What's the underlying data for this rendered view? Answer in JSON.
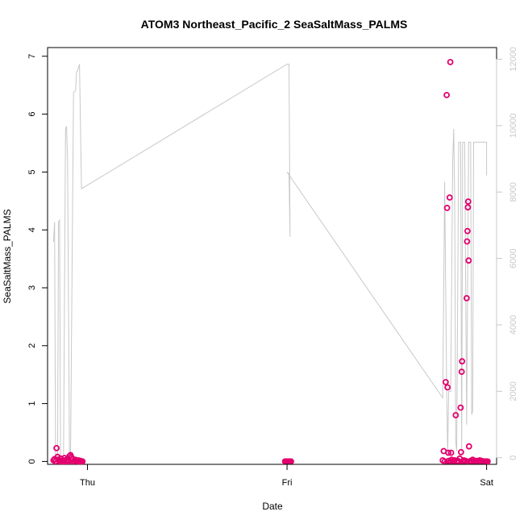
{
  "chart_data": {
    "type": "scatter",
    "title": "ATOM3 Northeast_Pacific_2 SeaSaltMass_PALMS",
    "xlabel": "Date",
    "ylabel": "SeaSaltMass_PALMS",
    "xlim": [
      -0.2,
      2.05
    ],
    "ylim": [
      -0.05,
      7.15
    ],
    "y2lim": [
      -200,
      12350
    ],
    "x_ticks": [
      {
        "value": 0,
        "label": "Thu"
      },
      {
        "value": 1,
        "label": "Fri"
      },
      {
        "value": 2,
        "label": "Sat"
      }
    ],
    "y_ticks": [
      0,
      1,
      2,
      3,
      4,
      5,
      6,
      7
    ],
    "y2_ticks": [
      0,
      2000,
      4000,
      6000,
      8000,
      10000,
      12000
    ],
    "grid": false,
    "colors": {
      "points": "#e3006e",
      "secondary_line": "#c8c8c8",
      "axes": "#000000",
      "right_axis": "#c8c8c8"
    },
    "series": [
      {
        "type": "scatter",
        "axis": "left",
        "values": [
          [
            -0.17,
            0.02
          ],
          [
            -0.165,
            0.04
          ],
          [
            -0.16,
            0.0
          ],
          [
            -0.155,
            0.23
          ],
          [
            -0.15,
            0.08
          ],
          [
            -0.145,
            0.03
          ],
          [
            -0.14,
            0.0
          ],
          [
            -0.135,
            0.05
          ],
          [
            -0.13,
            0.01
          ],
          [
            -0.125,
            0.0
          ],
          [
            -0.12,
            0.02
          ],
          [
            -0.115,
            0.06
          ],
          [
            -0.11,
            0.0
          ],
          [
            -0.105,
            0.03
          ],
          [
            -0.1,
            0.01
          ],
          [
            -0.095,
            0.0
          ],
          [
            -0.09,
            0.09
          ],
          [
            -0.085,
            0.11
          ],
          [
            -0.08,
            0.07
          ],
          [
            -0.075,
            0.04
          ],
          [
            -0.07,
            0.0
          ],
          [
            -0.065,
            0.02
          ],
          [
            -0.06,
            0.03
          ],
          [
            -0.055,
            0.01
          ],
          [
            -0.05,
            0.0
          ],
          [
            -0.045,
            0.02
          ],
          [
            -0.04,
            0.0
          ],
          [
            -0.035,
            0.01
          ],
          [
            -0.03,
            0.0
          ],
          [
            -0.025,
            0.0
          ],
          [
            0.99,
            0.0
          ],
          [
            0.995,
            0.0
          ],
          [
            1.0,
            0.0
          ],
          [
            1.005,
            0.0
          ],
          [
            1.01,
            0.0
          ],
          [
            1.015,
            0.0
          ],
          [
            1.02,
            0.0
          ],
          [
            1.78,
            0.02
          ],
          [
            1.785,
            0.18
          ],
          [
            1.79,
            0.0
          ],
          [
            1.795,
            1.37
          ],
          [
            1.8,
            6.33
          ],
          [
            1.802,
            4.38
          ],
          [
            1.804,
            1.28
          ],
          [
            1.806,
            0.0
          ],
          [
            1.808,
            0.15
          ],
          [
            1.81,
            0.01
          ],
          [
            1.815,
            4.56
          ],
          [
            1.818,
            6.9
          ],
          [
            1.82,
            0.0
          ],
          [
            1.822,
            0.15
          ],
          [
            1.825,
            0.03
          ],
          [
            1.83,
            0.0
          ],
          [
            1.835,
            0.01
          ],
          [
            1.84,
            0.02
          ],
          [
            1.845,
            0.8
          ],
          [
            1.85,
            0.0
          ],
          [
            1.855,
            0.01
          ],
          [
            1.86,
            0.0
          ],
          [
            1.865,
            0.05
          ],
          [
            1.87,
            0.93
          ],
          [
            1.872,
            0.16
          ],
          [
            1.875,
            1.55
          ],
          [
            1.877,
            1.73
          ],
          [
            1.88,
            0.0
          ],
          [
            1.885,
            0.02
          ],
          [
            1.89,
            0.0
          ],
          [
            1.895,
            0.01
          ],
          [
            1.9,
            2.82
          ],
          [
            1.902,
            3.8
          ],
          [
            1.904,
            3.98
          ],
          [
            1.906,
            4.39
          ],
          [
            1.908,
            4.49
          ],
          [
            1.91,
            3.47
          ],
          [
            1.912,
            0.26
          ],
          [
            1.915,
            0.0
          ],
          [
            1.92,
            0.01
          ],
          [
            1.925,
            0.0
          ],
          [
            1.93,
            0.03
          ],
          [
            1.935,
            0.0
          ],
          [
            1.94,
            0.01
          ],
          [
            1.945,
            0.0
          ],
          [
            1.95,
            0.01
          ],
          [
            1.955,
            0.0
          ],
          [
            1.96,
            0.0
          ],
          [
            1.965,
            0.02
          ],
          [
            1.97,
            0.0
          ],
          [
            1.975,
            0.01
          ],
          [
            1.98,
            0.0
          ],
          [
            1.985,
            0.0
          ],
          [
            1.99,
            0.0
          ],
          [
            1.995,
            0.0
          ],
          [
            2.0,
            0.0
          ],
          [
            2.005,
            0.0
          ]
        ]
      },
      {
        "type": "line",
        "axis": "right",
        "values": [
          [
            -0.17,
            6500
          ],
          [
            -0.165,
            7100
          ],
          [
            -0.16,
            50
          ],
          [
            -0.15,
            30
          ],
          [
            -0.145,
            7100
          ],
          [
            -0.14,
            7150
          ],
          [
            -0.135,
            50
          ],
          [
            -0.12,
            20
          ],
          [
            -0.11,
            9900
          ],
          [
            -0.105,
            9980
          ],
          [
            -0.1,
            9000
          ],
          [
            -0.09,
            100
          ],
          [
            -0.085,
            30
          ],
          [
            -0.07,
            11000
          ],
          [
            -0.06,
            11050
          ],
          [
            -0.055,
            11600
          ],
          [
            -0.05,
            11650
          ],
          [
            -0.04,
            11850
          ],
          [
            -0.03,
            8100
          ],
          [
            1.0,
            11850
          ],
          [
            1.01,
            11850
          ],
          [
            1.015,
            6650
          ],
          [
            1.01,
            8550
          ],
          [
            1.0,
            8600
          ],
          [
            1.78,
            1800
          ],
          [
            1.79,
            8300
          ],
          [
            1.8,
            2000
          ],
          [
            1.805,
            100
          ],
          [
            1.81,
            2000
          ],
          [
            1.82,
            2000
          ],
          [
            1.83,
            8900
          ],
          [
            1.835,
            9900
          ],
          [
            1.84,
            7800
          ],
          [
            1.845,
            500
          ],
          [
            1.85,
            200
          ],
          [
            1.86,
            9500
          ],
          [
            1.865,
            9500
          ],
          [
            1.87,
            9500
          ],
          [
            1.875,
            100
          ],
          [
            1.88,
            9500
          ],
          [
            1.89,
            9500
          ],
          [
            1.9,
            1000
          ],
          [
            1.91,
            9500
          ],
          [
            1.915,
            9500
          ],
          [
            1.92,
            9500
          ],
          [
            1.925,
            1300
          ],
          [
            1.93,
            1400
          ],
          [
            1.935,
            9500
          ],
          [
            2.0,
            9500
          ],
          [
            2.0,
            8500
          ]
        ]
      }
    ]
  }
}
